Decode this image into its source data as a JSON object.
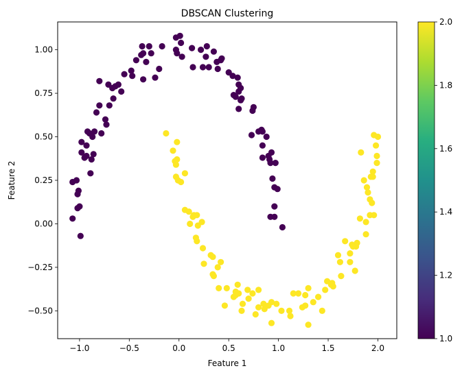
{
  "chart_data": {
    "type": "scatter",
    "title": "DBSCAN Clustering",
    "xlabel": "Feature 1",
    "ylabel": "Feature 2",
    "xlim": [
      -1.22,
      2.19
    ],
    "ylim": [
      -0.66,
      1.16
    ],
    "grid": false,
    "xticks": [
      -1.0,
      -0.5,
      0.0,
      0.5,
      1.0,
      1.5,
      2.0
    ],
    "xtick_labels": [
      "−1.0",
      "−0.5",
      "0.0",
      "0.5",
      "1.0",
      "1.5",
      "2.0"
    ],
    "yticks": [
      -0.5,
      -0.25,
      0.0,
      0.25,
      0.5,
      0.75,
      1.0
    ],
    "ytick_labels": [
      "−0.50",
      "−0.25",
      "0.00",
      "0.25",
      "0.50",
      "0.75",
      "1.00"
    ],
    "colorbar": {
      "range": [
        1.0,
        2.0
      ],
      "ticks": [
        1.0,
        1.2,
        1.4,
        1.6,
        1.8,
        2.0
      ],
      "tick_labels": [
        "1.0",
        "1.2",
        "1.4",
        "1.6",
        "1.8",
        "2.0"
      ],
      "colormap": "viridis"
    },
    "series": [
      {
        "cluster": 1,
        "color": "#440154",
        "points": [
          [
            -1.07,
            0.24
          ],
          [
            -1.03,
            0.25
          ],
          [
            -1.07,
            0.03
          ],
          [
            -1.01,
            0.19
          ],
          [
            -1.02,
            0.17
          ],
          [
            -1.02,
            0.09
          ],
          [
            -1.0,
            0.1
          ],
          [
            -0.99,
            -0.07
          ],
          [
            -0.98,
            0.47
          ],
          [
            -0.98,
            0.41
          ],
          [
            -0.95,
            0.38
          ],
          [
            -0.93,
            0.39
          ],
          [
            -0.93,
            0.45
          ],
          [
            -0.92,
            0.53
          ],
          [
            -0.9,
            0.52
          ],
          [
            -0.89,
            0.29
          ],
          [
            -0.88,
            0.37
          ],
          [
            -0.87,
            0.5
          ],
          [
            -0.85,
            0.53
          ],
          [
            -0.86,
            0.4
          ],
          [
            -0.83,
            0.64
          ],
          [
            -0.8,
            0.68
          ],
          [
            -0.8,
            0.82
          ],
          [
            -0.78,
            0.52
          ],
          [
            -0.74,
            0.6
          ],
          [
            -0.73,
            0.57
          ],
          [
            -0.71,
            0.8
          ],
          [
            -0.7,
            0.68
          ],
          [
            -0.67,
            0.78
          ],
          [
            -0.66,
            0.72
          ],
          [
            -0.64,
            0.79
          ],
          [
            -0.61,
            0.8
          ],
          [
            -0.58,
            0.76
          ],
          [
            -0.55,
            0.86
          ],
          [
            -0.48,
            0.88
          ],
          [
            -0.47,
            0.85
          ],
          [
            -0.43,
            0.94
          ],
          [
            -0.38,
            0.97
          ],
          [
            -0.36,
            0.98
          ],
          [
            -0.36,
            0.83
          ],
          [
            -0.37,
            1.02
          ],
          [
            -0.33,
            0.93
          ],
          [
            -0.28,
            0.98
          ],
          [
            -0.3,
            1.02
          ],
          [
            -0.24,
            0.84
          ],
          [
            -0.2,
            0.89
          ],
          [
            -0.17,
            1.02
          ],
          [
            -0.03,
            1.0
          ],
          [
            -0.03,
            1.07
          ],
          [
            -0.02,
            0.98
          ],
          [
            0.01,
            1.08
          ],
          [
            0.03,
            0.96
          ],
          [
            0.02,
            1.04
          ],
          [
            0.13,
            1.01
          ],
          [
            0.14,
            0.9
          ],
          [
            0.22,
            1.0
          ],
          [
            0.24,
            0.9
          ],
          [
            0.27,
            0.96
          ],
          [
            0.28,
            1.02
          ],
          [
            0.3,
            0.9
          ],
          [
            0.35,
            0.99
          ],
          [
            0.38,
            0.93
          ],
          [
            0.39,
            0.89
          ],
          [
            0.42,
            0.94
          ],
          [
            0.43,
            0.95
          ],
          [
            0.5,
            0.87
          ],
          [
            0.54,
            0.85
          ],
          [
            0.55,
            0.74
          ],
          [
            0.57,
            0.73
          ],
          [
            0.59,
            0.84
          ],
          [
            0.6,
            0.76
          ],
          [
            0.6,
            0.8
          ],
          [
            0.6,
            0.66
          ],
          [
            0.62,
            0.71
          ],
          [
            0.62,
            0.78
          ],
          [
            0.63,
            0.72
          ],
          [
            0.73,
            0.51
          ],
          [
            0.74,
            0.65
          ],
          [
            0.75,
            0.67
          ],
          [
            0.8,
            0.53
          ],
          [
            0.83,
            0.54
          ],
          [
            0.84,
            0.45
          ],
          [
            0.84,
            0.53
          ],
          [
            0.84,
            0.38
          ],
          [
            0.88,
            0.5
          ],
          [
            0.9,
            0.39
          ],
          [
            0.91,
            0.37
          ],
          [
            0.92,
            0.35
          ],
          [
            0.92,
            0.04
          ],
          [
            0.93,
            0.41
          ],
          [
            0.94,
            0.26
          ],
          [
            0.96,
            0.1
          ],
          [
            0.96,
            0.04
          ],
          [
            0.96,
            0.21
          ],
          [
            0.97,
            0.35
          ],
          [
            0.99,
            0.2
          ],
          [
            1.04,
            -0.02
          ]
        ]
      },
      {
        "cluster": 2,
        "color": "#fde725",
        "points": [
          [
            -0.13,
            0.52
          ],
          [
            -0.06,
            0.42
          ],
          [
            -0.04,
            0.36
          ],
          [
            -0.03,
            0.34
          ],
          [
            -0.02,
            0.37
          ],
          [
            -0.02,
            0.47
          ],
          [
            -0.03,
            0.27
          ],
          [
            -0.01,
            0.25
          ],
          [
            0.02,
            0.24
          ],
          [
            0.06,
            0.29
          ],
          [
            0.06,
            0.08
          ],
          [
            0.1,
            0.07
          ],
          [
            0.11,
            -0.0
          ],
          [
            0.14,
            0.04
          ],
          [
            0.15,
            0.05
          ],
          [
            0.18,
            0.05
          ],
          [
            0.18,
            -0.1
          ],
          [
            0.17,
            -0.08
          ],
          [
            0.19,
            -0.01
          ],
          [
            0.23,
            0.01
          ],
          [
            0.24,
            -0.14
          ],
          [
            0.25,
            -0.23
          ],
          [
            0.32,
            -0.18
          ],
          [
            0.34,
            -0.19
          ],
          [
            0.34,
            -0.29
          ],
          [
            0.35,
            -0.3
          ],
          [
            0.39,
            -0.25
          ],
          [
            0.4,
            -0.37
          ],
          [
            0.42,
            -0.22
          ],
          [
            0.46,
            -0.47
          ],
          [
            0.48,
            -0.37
          ],
          [
            0.55,
            -0.42
          ],
          [
            0.57,
            -0.41
          ],
          [
            0.57,
            -0.39
          ],
          [
            0.59,
            -0.35
          ],
          [
            0.6,
            -0.4
          ],
          [
            0.63,
            -0.5
          ],
          [
            0.64,
            -0.46
          ],
          [
            0.69,
            -0.38
          ],
          [
            0.7,
            -0.43
          ],
          [
            0.74,
            -0.4
          ],
          [
            0.77,
            -0.52
          ],
          [
            0.8,
            -0.48
          ],
          [
            0.8,
            -0.38
          ],
          [
            0.85,
            -0.46
          ],
          [
            0.86,
            -0.49
          ],
          [
            0.9,
            -0.47
          ],
          [
            0.93,
            -0.57
          ],
          [
            0.93,
            -0.45
          ],
          [
            0.98,
            -0.46
          ],
          [
            1.03,
            -0.5
          ],
          [
            1.11,
            -0.5
          ],
          [
            1.12,
            -0.53
          ],
          [
            1.15,
            -0.4
          ],
          [
            1.2,
            -0.4
          ],
          [
            1.24,
            -0.48
          ],
          [
            1.27,
            -0.47
          ],
          [
            1.27,
            -0.41
          ],
          [
            1.3,
            -0.58
          ],
          [
            1.3,
            -0.37
          ],
          [
            1.35,
            -0.45
          ],
          [
            1.4,
            -0.42
          ],
          [
            1.44,
            -0.5
          ],
          [
            1.47,
            -0.38
          ],
          [
            1.49,
            -0.33
          ],
          [
            1.53,
            -0.35
          ],
          [
            1.54,
            -0.34
          ],
          [
            1.55,
            -0.36
          ],
          [
            1.6,
            -0.18
          ],
          [
            1.62,
            -0.22
          ],
          [
            1.63,
            -0.3
          ],
          [
            1.67,
            -0.1
          ],
          [
            1.72,
            -0.22
          ],
          [
            1.72,
            -0.17
          ],
          [
            1.74,
            -0.12
          ],
          [
            1.75,
            -0.13
          ],
          [
            1.77,
            -0.27
          ],
          [
            1.78,
            -0.13
          ],
          [
            1.79,
            -0.11
          ],
          [
            1.83,
            0.41
          ],
          [
            1.82,
            0.03
          ],
          [
            1.86,
            0.25
          ],
          [
            1.88,
            -0.06
          ],
          [
            1.88,
            0.01
          ],
          [
            1.89,
            0.21
          ],
          [
            1.9,
            0.18
          ],
          [
            1.92,
            0.14
          ],
          [
            1.92,
            0.05
          ],
          [
            1.93,
            0.27
          ],
          [
            1.94,
            0.12
          ],
          [
            1.95,
            0.27
          ],
          [
            1.95,
            0.3
          ],
          [
            1.96,
            0.51
          ],
          [
            1.96,
            0.05
          ],
          [
            1.98,
            0.45
          ],
          [
            1.99,
            0.39
          ],
          [
            1.99,
            0.35
          ],
          [
            2.0,
            0.5
          ]
        ]
      }
    ]
  }
}
